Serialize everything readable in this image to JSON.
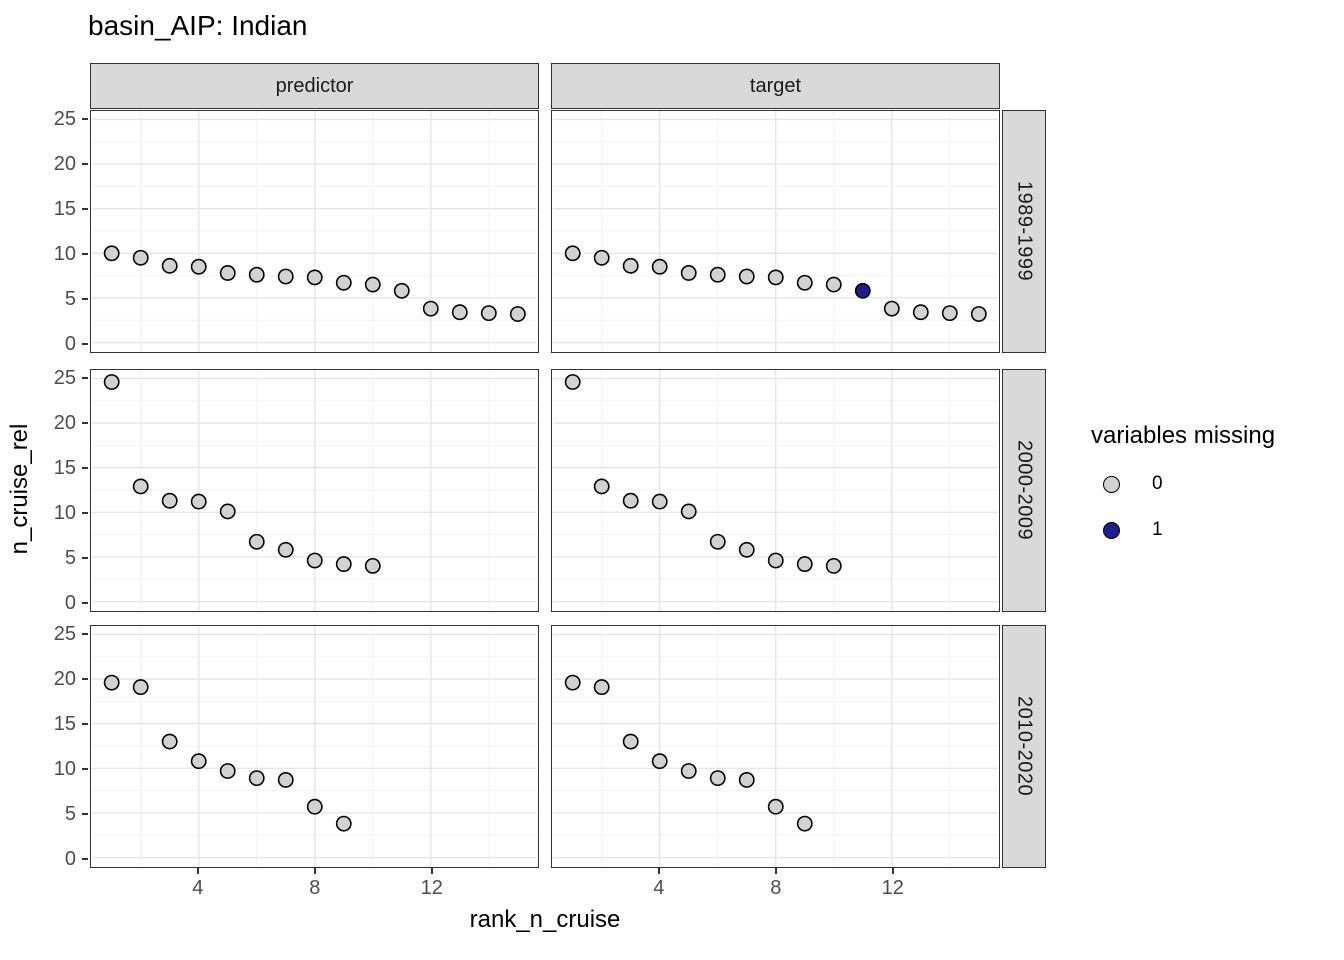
{
  "chart_data": {
    "type": "scatter",
    "title": "basin_AIP: Indian",
    "xlabel": "rank_n_cruise",
    "ylabel": "n_cruise_rel",
    "facet_cols": [
      "predictor",
      "target"
    ],
    "facet_rows": [
      "1989-1999",
      "2000-2009",
      "2010-2020"
    ],
    "x_axis": {
      "ticks": [
        4,
        8,
        12
      ],
      "minor": [
        2,
        6,
        10,
        14
      ],
      "range": [
        0.3,
        15.7
      ]
    },
    "y_axis": {
      "ticks": [
        25,
        20,
        15,
        10,
        5,
        0
      ],
      "minor": [
        22.5,
        17.5,
        12.5,
        7.5,
        2.5
      ],
      "range": [
        -1,
        26
      ]
    },
    "grid": true,
    "legend": {
      "title": "variables missing",
      "position": "right",
      "entries": [
        {
          "label": "0",
          "color": "#d2d2d2"
        },
        {
          "label": "1",
          "color": "#1e1e8c"
        }
      ]
    },
    "colors": {
      "point_fill_missing0": "#d2d2d2",
      "point_fill_missing1": "#1e1e8c",
      "point_stroke": "#000000",
      "strip_fill": "#d9d9d9",
      "panel_border": "#333333",
      "grid_major": "#e6e6e6",
      "grid_minor": "#f2f2f2",
      "tick_label": "#4d4d4d"
    },
    "panels": [
      {
        "col": "predictor",
        "row": "1989-1999",
        "points": [
          [
            1,
            10.0,
            0
          ],
          [
            2,
            9.5,
            0
          ],
          [
            3,
            8.6,
            0
          ],
          [
            4,
            8.5,
            0
          ],
          [
            5,
            7.8,
            0
          ],
          [
            6,
            7.6,
            0
          ],
          [
            7,
            7.4,
            0
          ],
          [
            8,
            7.3,
            0
          ],
          [
            9,
            6.7,
            0
          ],
          [
            10,
            6.5,
            0
          ],
          [
            11,
            5.8,
            0
          ],
          [
            12,
            3.8,
            0
          ],
          [
            13,
            3.4,
            0
          ],
          [
            14,
            3.3,
            0
          ],
          [
            15,
            3.2,
            0
          ]
        ]
      },
      {
        "col": "target",
        "row": "1989-1999",
        "points": [
          [
            1,
            10.0,
            0
          ],
          [
            2,
            9.5,
            0
          ],
          [
            3,
            8.6,
            0
          ],
          [
            4,
            8.5,
            0
          ],
          [
            5,
            7.8,
            0
          ],
          [
            6,
            7.6,
            0
          ],
          [
            7,
            7.4,
            0
          ],
          [
            8,
            7.3,
            0
          ],
          [
            9,
            6.7,
            0
          ],
          [
            10,
            6.5,
            0
          ],
          [
            11,
            5.8,
            1
          ],
          [
            12,
            3.8,
            0
          ],
          [
            13,
            3.4,
            0
          ],
          [
            14,
            3.3,
            0
          ],
          [
            15,
            3.2,
            0
          ]
        ]
      },
      {
        "col": "predictor",
        "row": "2000-2009",
        "points": [
          [
            1,
            24.6,
            0
          ],
          [
            2,
            12.9,
            0
          ],
          [
            3,
            11.3,
            0
          ],
          [
            4,
            11.2,
            0
          ],
          [
            5,
            10.1,
            0
          ],
          [
            6,
            6.7,
            0
          ],
          [
            7,
            5.8,
            0
          ],
          [
            8,
            4.6,
            0
          ],
          [
            9,
            4.2,
            0
          ],
          [
            10,
            4.0,
            0
          ]
        ]
      },
      {
        "col": "target",
        "row": "2000-2009",
        "points": [
          [
            1,
            24.6,
            0
          ],
          [
            2,
            12.9,
            0
          ],
          [
            3,
            11.3,
            0
          ],
          [
            4,
            11.2,
            0
          ],
          [
            5,
            10.1,
            0
          ],
          [
            6,
            6.7,
            0
          ],
          [
            7,
            5.8,
            0
          ],
          [
            8,
            4.6,
            0
          ],
          [
            9,
            4.2,
            0
          ],
          [
            10,
            4.0,
            0
          ]
        ]
      },
      {
        "col": "predictor",
        "row": "2010-2020",
        "points": [
          [
            1,
            19.6,
            0
          ],
          [
            2,
            19.1,
            0
          ],
          [
            3,
            13.0,
            0
          ],
          [
            4,
            10.8,
            0
          ],
          [
            5,
            9.7,
            0
          ],
          [
            6,
            8.9,
            0
          ],
          [
            7,
            8.7,
            0
          ],
          [
            8,
            5.7,
            0
          ],
          [
            9,
            3.8,
            0
          ]
        ]
      },
      {
        "col": "target",
        "row": "2010-2020",
        "points": [
          [
            1,
            19.6,
            0
          ],
          [
            2,
            19.1,
            0
          ],
          [
            3,
            13.0,
            0
          ],
          [
            4,
            10.8,
            0
          ],
          [
            5,
            9.7,
            0
          ],
          [
            6,
            8.9,
            0
          ],
          [
            7,
            8.7,
            0
          ],
          [
            8,
            5.7,
            0
          ],
          [
            9,
            3.8,
            0
          ]
        ]
      }
    ]
  }
}
